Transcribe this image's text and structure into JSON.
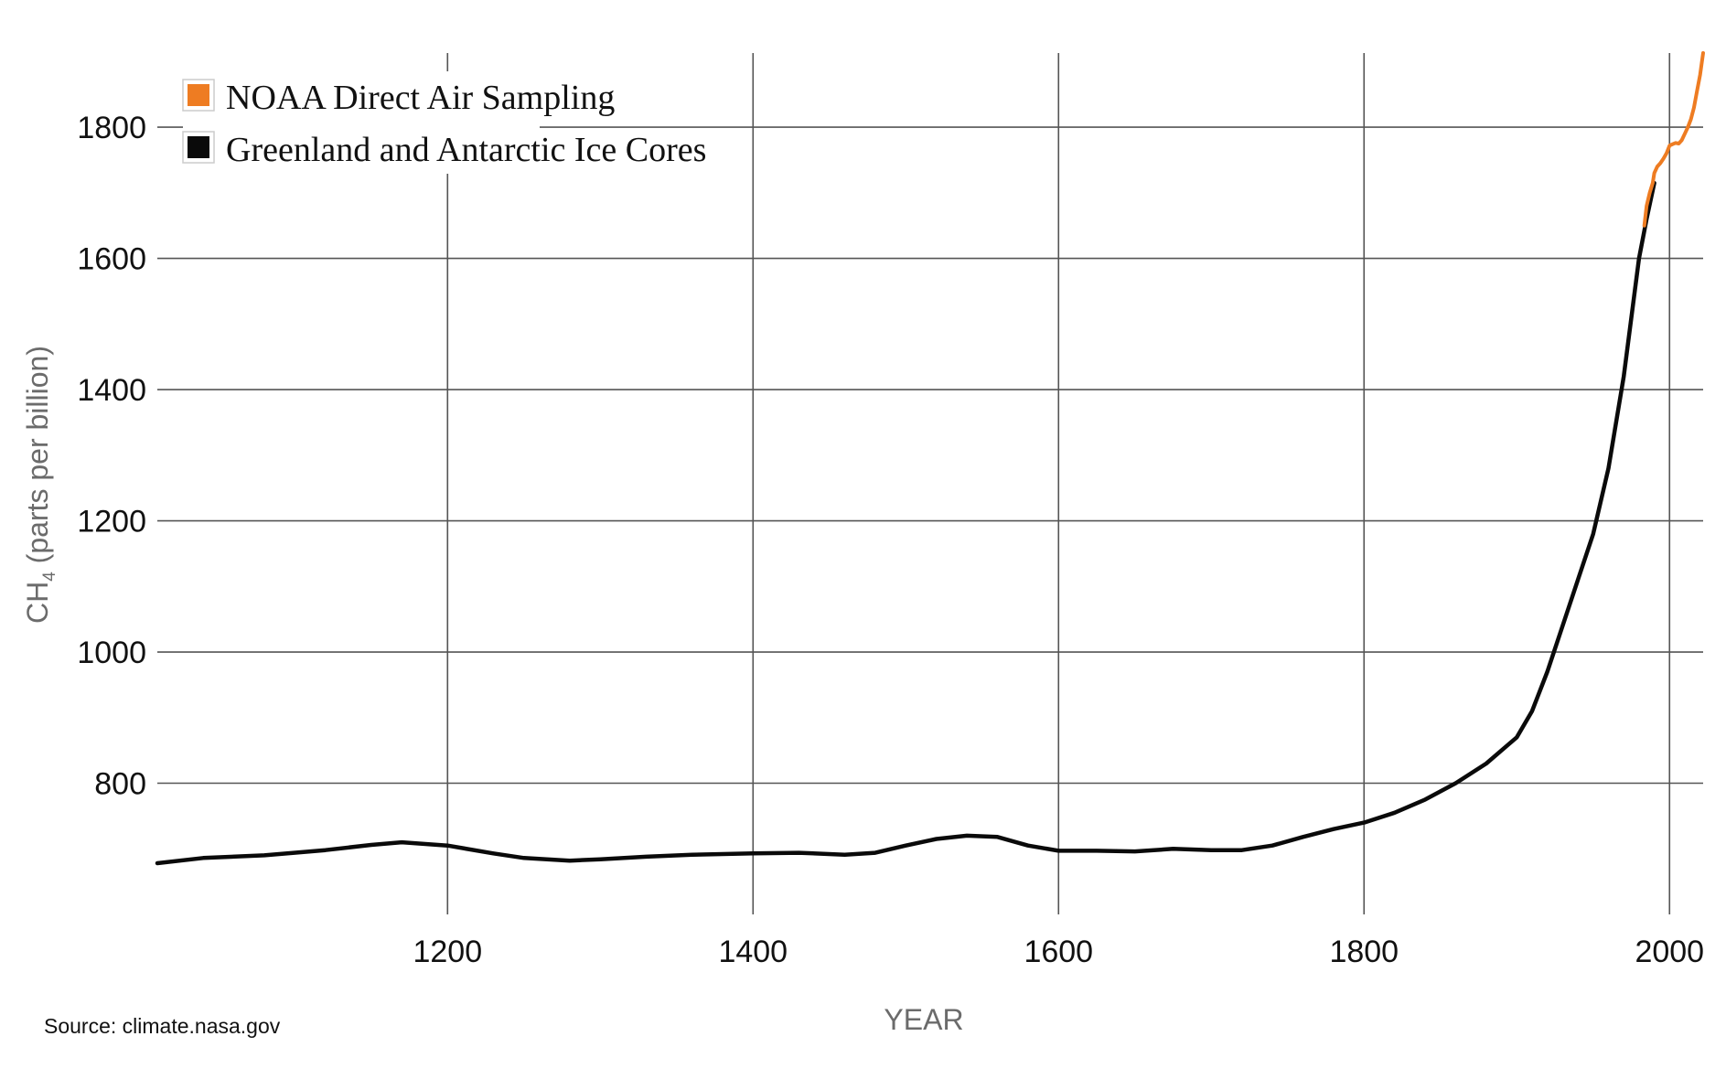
{
  "chart_data": {
    "type": "line",
    "xlabel": "YEAR",
    "ylabel_main": "CH",
    "ylabel_sub": "4",
    "ylabel_rest": " (parts per billion)",
    "xlim": [
      1010,
      2022
    ],
    "ylim": [
      600,
      1913
    ],
    "x_ticks": [
      1200,
      1400,
      1600,
      1800,
      2000
    ],
    "y_ticks": [
      800,
      1000,
      1200,
      1400,
      1600,
      1800
    ],
    "grid": true,
    "legend_position": "top-left",
    "series": [
      {
        "name": "NOAA Direct Air Sampling",
        "color": "#ee7c22",
        "points": [
          [
            1983.5,
            1650
          ],
          [
            1985,
            1680
          ],
          [
            1987,
            1700
          ],
          [
            1989,
            1715
          ],
          [
            1990,
            1730
          ],
          [
            1992,
            1740
          ],
          [
            1994,
            1745
          ],
          [
            1996,
            1752
          ],
          [
            1998,
            1760
          ],
          [
            2000,
            1772
          ],
          [
            2002,
            1774
          ],
          [
            2004,
            1776
          ],
          [
            2006,
            1775
          ],
          [
            2008,
            1780
          ],
          [
            2010,
            1790
          ],
          [
            2012,
            1800
          ],
          [
            2014,
            1812
          ],
          [
            2016,
            1830
          ],
          [
            2018,
            1855
          ],
          [
            2020,
            1880
          ],
          [
            2022,
            1913
          ]
        ]
      },
      {
        "name": "Greenland and Antarctic Ice Cores",
        "color": "#0a0a0a",
        "points": [
          [
            1010,
            678
          ],
          [
            1040,
            686
          ],
          [
            1080,
            690
          ],
          [
            1120,
            698
          ],
          [
            1150,
            706
          ],
          [
            1170,
            710
          ],
          [
            1200,
            705
          ],
          [
            1230,
            693
          ],
          [
            1250,
            686
          ],
          [
            1280,
            682
          ],
          [
            1300,
            684
          ],
          [
            1330,
            688
          ],
          [
            1360,
            691
          ],
          [
            1400,
            693
          ],
          [
            1430,
            694
          ],
          [
            1460,
            691
          ],
          [
            1480,
            694
          ],
          [
            1500,
            705
          ],
          [
            1520,
            715
          ],
          [
            1540,
            720
          ],
          [
            1560,
            718
          ],
          [
            1580,
            705
          ],
          [
            1600,
            697
          ],
          [
            1625,
            697
          ],
          [
            1650,
            696
          ],
          [
            1675,
            700
          ],
          [
            1700,
            698
          ],
          [
            1720,
            698
          ],
          [
            1740,
            705
          ],
          [
            1760,
            718
          ],
          [
            1780,
            730
          ],
          [
            1800,
            740
          ],
          [
            1820,
            755
          ],
          [
            1840,
            775
          ],
          [
            1860,
            800
          ],
          [
            1880,
            830
          ],
          [
            1900,
            870
          ],
          [
            1910,
            910
          ],
          [
            1920,
            970
          ],
          [
            1930,
            1040
          ],
          [
            1940,
            1110
          ],
          [
            1950,
            1180
          ],
          [
            1960,
            1280
          ],
          [
            1970,
            1420
          ],
          [
            1980,
            1600
          ],
          [
            1985,
            1660
          ],
          [
            1990,
            1715
          ]
        ]
      }
    ]
  },
  "source": "Source: climate.nasa.gov"
}
